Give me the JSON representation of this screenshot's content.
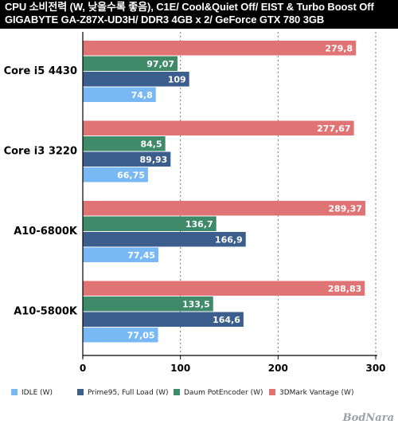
{
  "header": {
    "line1": "CPU 소비전력 (W, 낮을수록 좋음), C1E/ Cool&Quiet Off/ EIST & Turbo Boost Off",
    "line2": "GIGABYTE GA-Z87X-UD3H/ DDR3 4GB x 2/ GeForce GTX 780 3GB"
  },
  "watermark": "BodNara",
  "chart_data": {
    "type": "bar",
    "orientation": "horizontal",
    "categories": [
      "Core i5 4430",
      "Core i3 3220",
      "A10-6800K",
      "A10-5800K"
    ],
    "series": [
      {
        "name": "3DMark Vantage (W)",
        "color": "#e07474",
        "values": [
          279.8,
          277.67,
          289.37,
          288.83
        ],
        "labels": [
          "279,8",
          "277,67",
          "289,37",
          "288,83"
        ]
      },
      {
        "name": "Daum PotEncoder (W)",
        "color": "#3f8a68",
        "values": [
          97.07,
          84.5,
          136.7,
          133.5
        ],
        "labels": [
          "97,07",
          "84,5",
          "136,7",
          "133,5"
        ]
      },
      {
        "name": "Prime95, Full Load (W)",
        "color": "#3c5e8c",
        "values": [
          109,
          89.93,
          166.9,
          164.6
        ],
        "labels": [
          "109",
          "89,93",
          "166,9",
          "164,6"
        ]
      },
      {
        "name": "IDLE (W)",
        "color": "#78b8f4",
        "values": [
          74.8,
          66.75,
          77.45,
          77.05
        ],
        "labels": [
          "74,8",
          "66,75",
          "77,45",
          "77,05"
        ]
      }
    ],
    "legend_order": [
      "IDLE (W)",
      "Prime95, Full Load (W)",
      "Daum PotEncoder (W)",
      "3DMark Vantage (W)"
    ],
    "xlim": [
      0,
      300
    ],
    "xticks": [
      0,
      100,
      200,
      300
    ],
    "grid": "vertical dashed",
    "legend_position": "bottom"
  }
}
